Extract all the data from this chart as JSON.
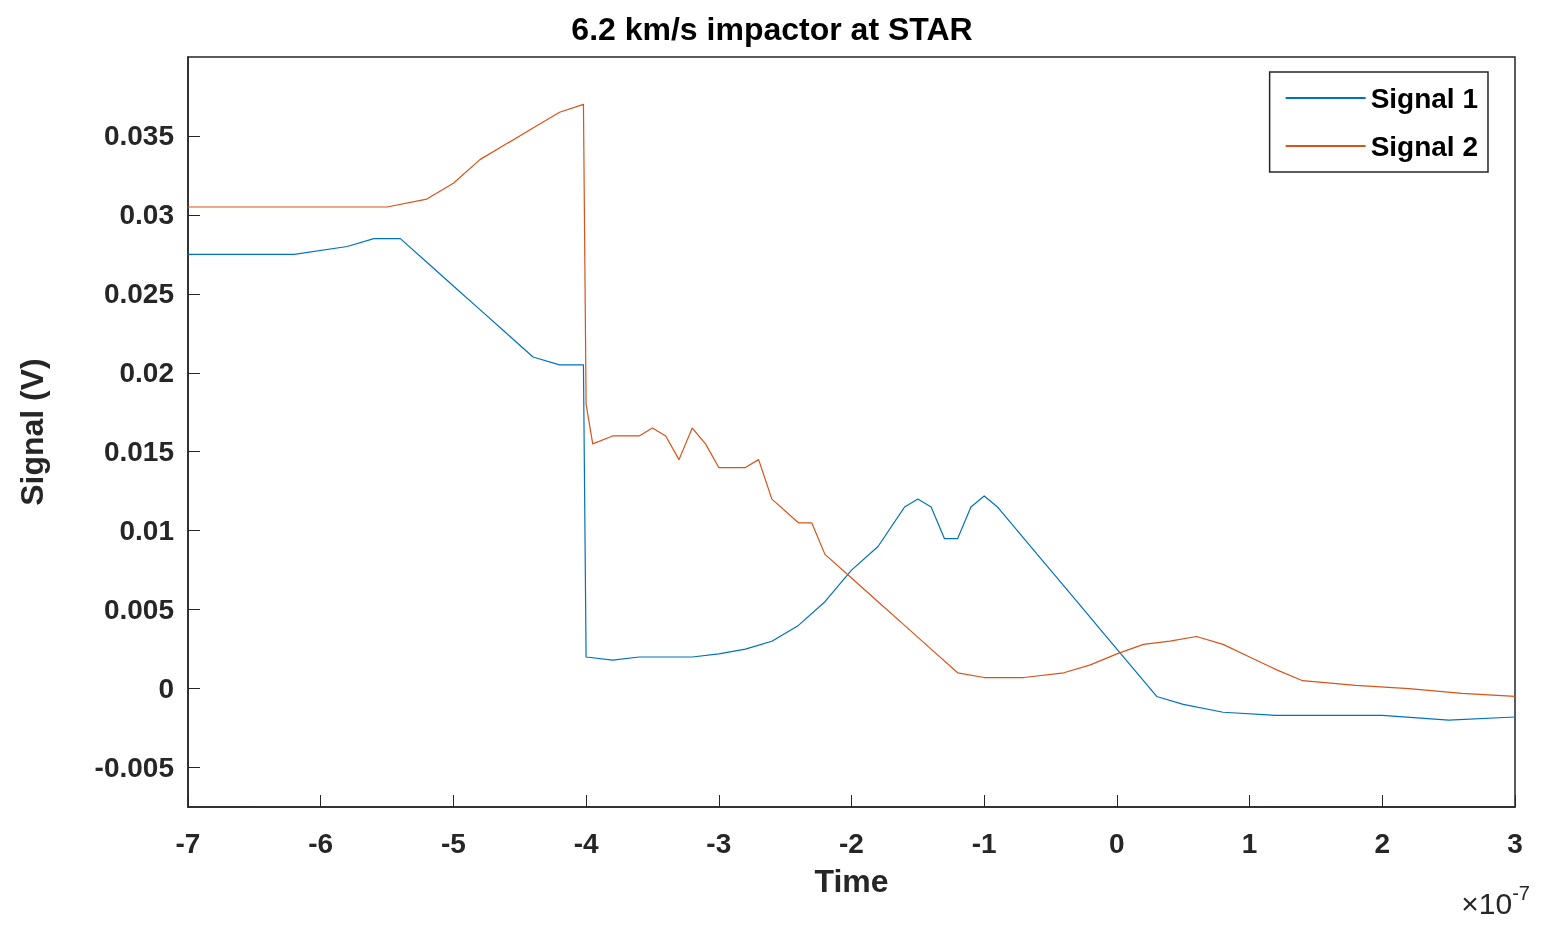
{
  "chart_data": {
    "type": "line",
    "title": "6.2 km/s impactor at STAR",
    "xlabel": "Time",
    "ylabel": "Signal (V)",
    "annotations": [
      "×10$^{-7}$"
    ],
    "xlim": [
      -7,
      3
    ],
    "xticks": [
      -7,
      -6,
      -5,
      -4,
      -3,
      -2,
      -1,
      0,
      1,
      2,
      3
    ],
    "ylim": [
      -0.0075,
      0.04
    ],
    "yticks": [
      -0.005,
      0,
      0.005,
      0.01,
      0.015,
      0.02,
      0.025,
      0.03,
      0.035
    ],
    "grid": false,
    "legend": "top right",
    "marker": "none",
    "line_style": "solid",
    "series": [
      {
        "name": "Signal 1",
        "color": "#0072bd",
        "x": [
          -7,
          -6.6,
          -6.2,
          -5.8,
          -5.6,
          -5.4,
          -5.2,
          -5.0,
          -4.8,
          -4.6,
          -4.4,
          -4.2,
          -4.02,
          -4.0,
          -3.8,
          -3.6,
          -3.4,
          -3.2,
          -3.0,
          -2.8,
          -2.6,
          -2.4,
          -2.2,
          -2.0,
          -1.8,
          -1.6,
          -1.5,
          -1.4,
          -1.3,
          -1.2,
          -1.1,
          -1.0,
          -0.9,
          -0.7,
          -0.5,
          -0.3,
          -0.1,
          0.1,
          0.2,
          0.3,
          0.5,
          0.8,
          1.2,
          1.6,
          2.0,
          2.5,
          3.0
        ],
        "values": [
          0.0275,
          0.0275,
          0.0275,
          0.028,
          0.0285,
          0.0285,
          0.027,
          0.0255,
          0.024,
          0.0225,
          0.021,
          0.0205,
          0.0205,
          0.002,
          0.0018,
          0.002,
          0.002,
          0.002,
          0.0022,
          0.0025,
          0.003,
          0.004,
          0.0055,
          0.0075,
          0.009,
          0.0115,
          0.012,
          0.0115,
          0.0095,
          0.0095,
          0.0115,
          0.0122,
          0.0115,
          0.0095,
          0.0075,
          0.0055,
          0.0035,
          0.0015,
          0.0005,
          -0.0005,
          -0.001,
          -0.0015,
          -0.0017,
          -0.0017,
          -0.0017,
          -0.002,
          -0.0018
        ]
      },
      {
        "name": "Signal 2",
        "color": "#d95319",
        "x": [
          -7,
          -6.5,
          -6,
          -5.5,
          -5.2,
          -5.0,
          -4.8,
          -4.6,
          -4.4,
          -4.2,
          -4.02,
          -4.0,
          -3.95,
          -3.8,
          -3.6,
          -3.5,
          -3.4,
          -3.3,
          -3.2,
          -3.1,
          -3.0,
          -2.8,
          -2.7,
          -2.6,
          -2.4,
          -2.3,
          -2.2,
          -2.0,
          -1.8,
          -1.6,
          -1.4,
          -1.2,
          -1.0,
          -0.7,
          -0.4,
          -0.2,
          0,
          0.2,
          0.4,
          0.6,
          0.8,
          1.0,
          1.2,
          1.4,
          1.8,
          2.2,
          2.6,
          3.0
        ],
        "values": [
          0.0305,
          0.0305,
          0.0305,
          0.0305,
          0.031,
          0.032,
          0.0335,
          0.0345,
          0.0355,
          0.0365,
          0.037,
          0.018,
          0.0155,
          0.016,
          0.016,
          0.0165,
          0.016,
          0.0145,
          0.0165,
          0.0155,
          0.014,
          0.014,
          0.0145,
          0.012,
          0.0105,
          0.0105,
          0.0085,
          0.007,
          0.0055,
          0.004,
          0.0025,
          0.001,
          0.0007,
          0.0007,
          0.001,
          0.0015,
          0.0022,
          0.0028,
          0.003,
          0.0033,
          0.0028,
          0.002,
          0.0012,
          0.0005,
          0.0002,
          0,
          -0.0003,
          -0.0005
        ]
      }
    ]
  }
}
